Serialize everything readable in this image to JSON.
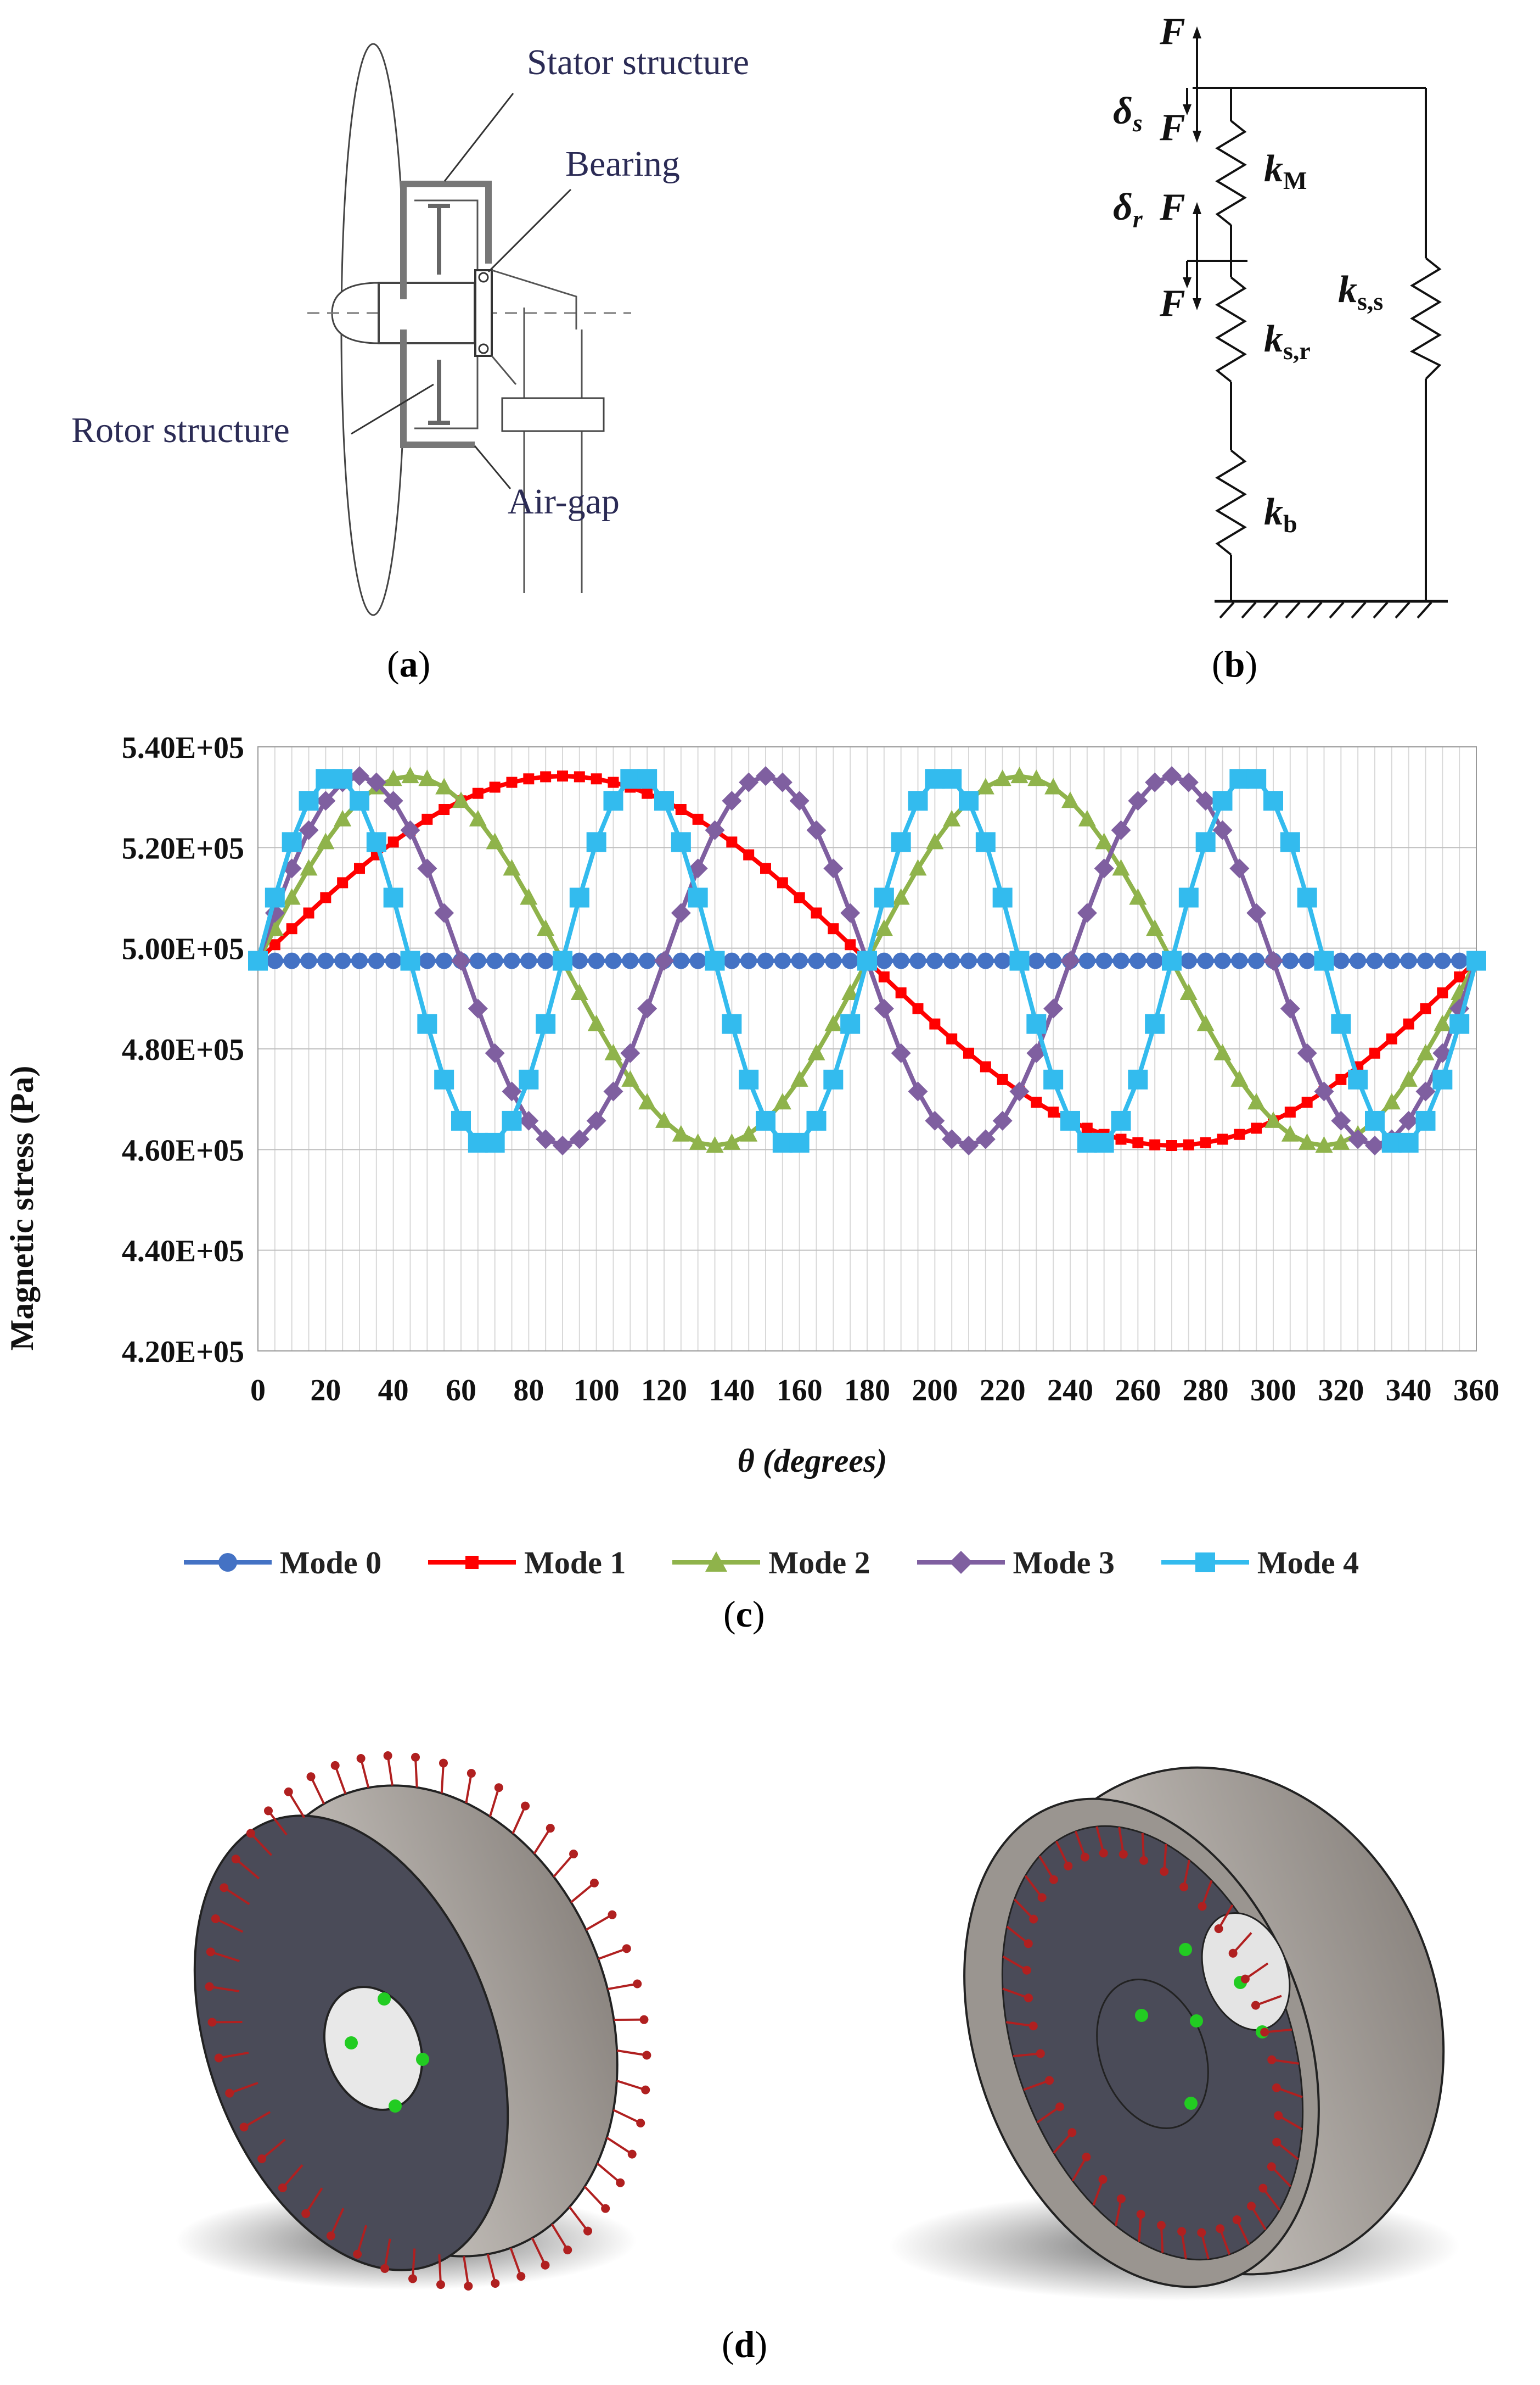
{
  "panel_a": {
    "labels": {
      "stator": "Stator structure",
      "bearing": "Bearing",
      "rotor": "Rotor structure",
      "airgap": "Air-gap"
    },
    "caption_letter": "a"
  },
  "panel_b": {
    "labels": {
      "F": "F",
      "delta_s": "δ",
      "delta_s_sub": "s",
      "delta_r": "δ",
      "delta_r_sub": "r",
      "k": "k",
      "kM_sub": "M",
      "ksr_sub": "s,r",
      "kss_sub": "s,s",
      "kb_sub": "b"
    },
    "caption_letter": "b"
  },
  "panel_c": {
    "caption_letter": "c",
    "colors": {
      "mode0": "#4472C4",
      "mode1": "#FF0000",
      "mode2": "#8FB34B",
      "mode3": "#7F5FA0",
      "mode4": "#33BBEE"
    },
    "chart_data": {
      "type": "line",
      "xlabel": "θ (degrees)",
      "ylabel": "Magnetic stress (Pa)",
      "xlim": [
        0,
        360
      ],
      "ylim": [
        420000,
        540000
      ],
      "x_ticks": [
        0,
        20,
        40,
        60,
        80,
        100,
        120,
        140,
        160,
        180,
        200,
        220,
        240,
        260,
        280,
        300,
        320,
        340,
        360
      ],
      "y_ticks": [
        "4.20E+05",
        "4.40E+05",
        "4.60E+05",
        "4.80E+05",
        "5.00E+05",
        "5.20E+05",
        "5.40E+05"
      ],
      "y_tick_values": [
        420000,
        440000,
        460000,
        480000,
        500000,
        520000,
        540000
      ],
      "grid": true,
      "legend_position": "bottom",
      "mean": 497500,
      "amplitude": 36700,
      "series": [
        {
          "name": "Mode 0",
          "mode": 0,
          "marker": "circle",
          "step_deg": 5
        },
        {
          "name": "Mode 1",
          "mode": 1,
          "marker": "square-small",
          "step_deg": 5
        },
        {
          "name": "Mode 2",
          "mode": 2,
          "marker": "triangle",
          "step_deg": 5
        },
        {
          "name": "Mode 3",
          "mode": 3,
          "marker": "diamond",
          "step_deg": 5
        },
        {
          "name": "Mode 4",
          "mode": 4,
          "marker": "square",
          "step_deg": 5
        }
      ]
    }
  },
  "panel_d": {
    "caption_letter": "d"
  }
}
